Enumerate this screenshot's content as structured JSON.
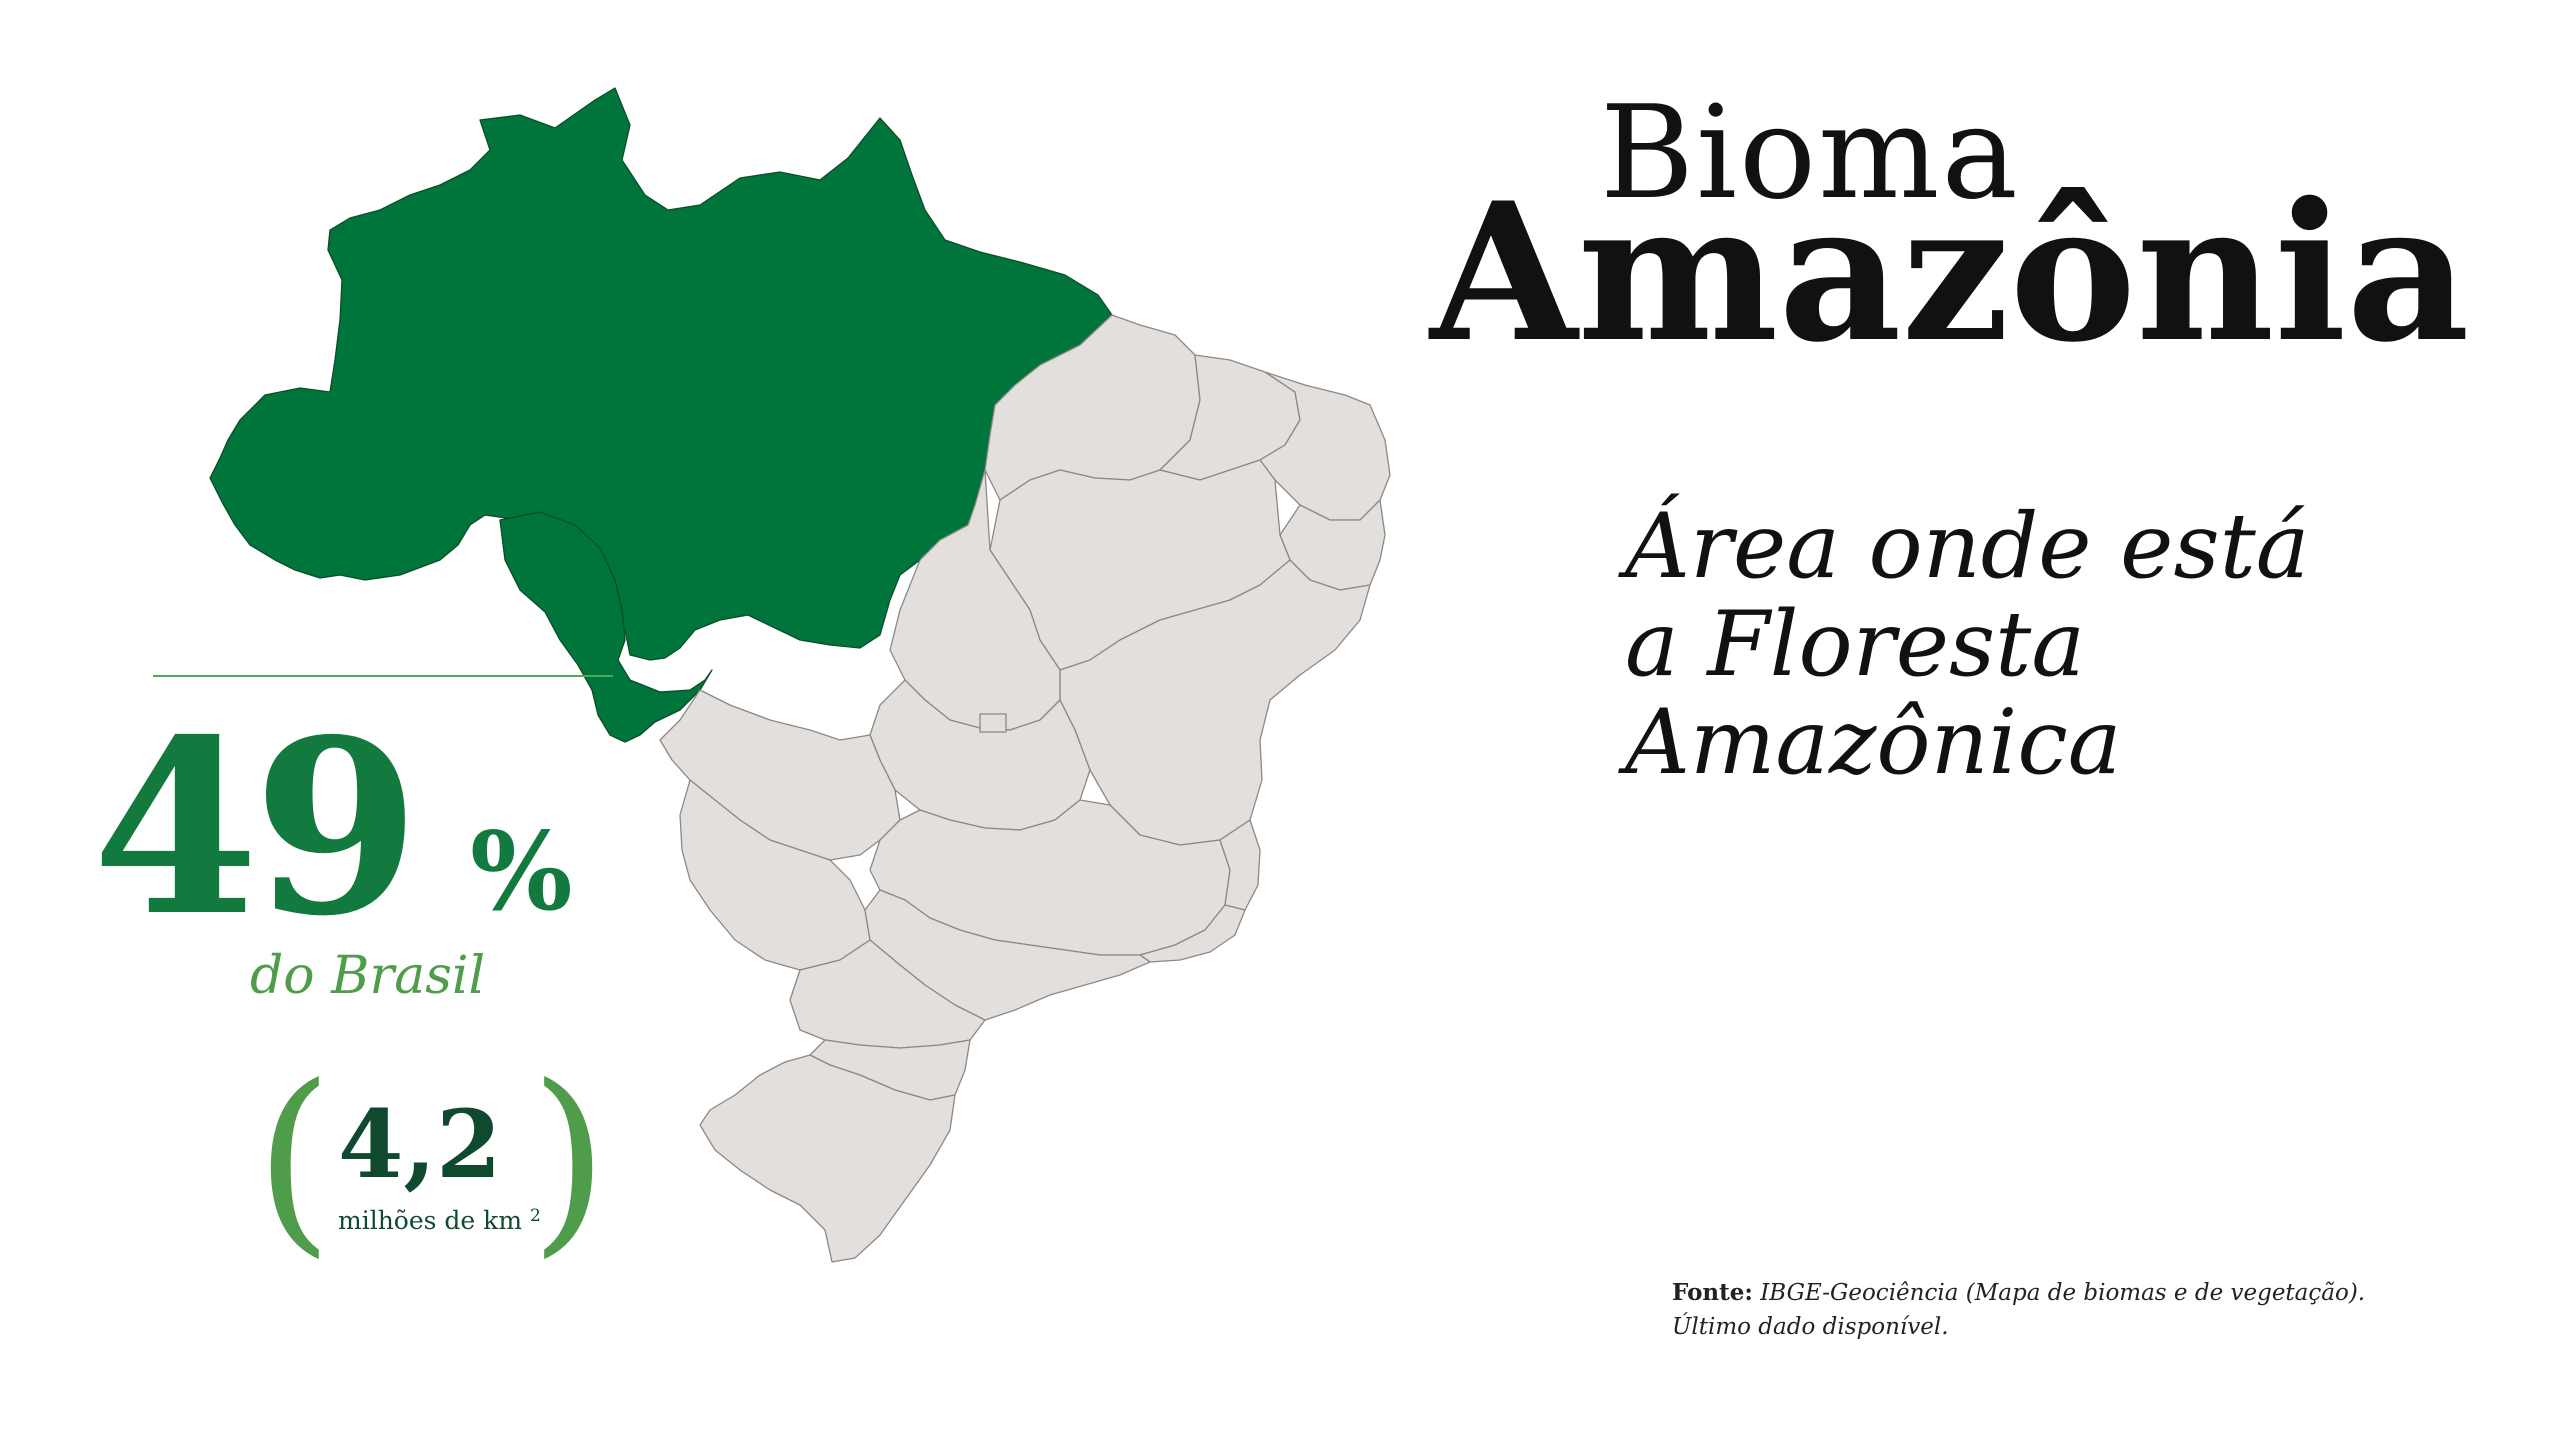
{
  "title": {
    "line1": "Bioma",
    "line2": "Amazônia"
  },
  "subtitle": {
    "lines": [
      "Área onde está",
      "a Floresta",
      "Amazônica"
    ]
  },
  "stat": {
    "value": "49",
    "unit": "%",
    "caption": "do Brasil",
    "share_percent": 49
  },
  "area": {
    "open_paren": "(",
    "value": "4,2",
    "unit_text": "milhões de km",
    "unit_superscript": "2",
    "close_paren": ")"
  },
  "source": {
    "label": "Fonte:",
    "text": "IBGE-Geociência (Mapa de biomas e de vegetação).",
    "note": "Último dado disponível."
  },
  "map": {
    "country": "Brasil",
    "highlighted_biome": "Amazônia",
    "colors": {
      "highlight": "#00753b",
      "rest": "#e2dfdc",
      "borders": "#8c8885",
      "stat_green": "#127a3e",
      "caption_green": "#4f9c4a",
      "area_dark_green": "#0f4a2f"
    }
  }
}
